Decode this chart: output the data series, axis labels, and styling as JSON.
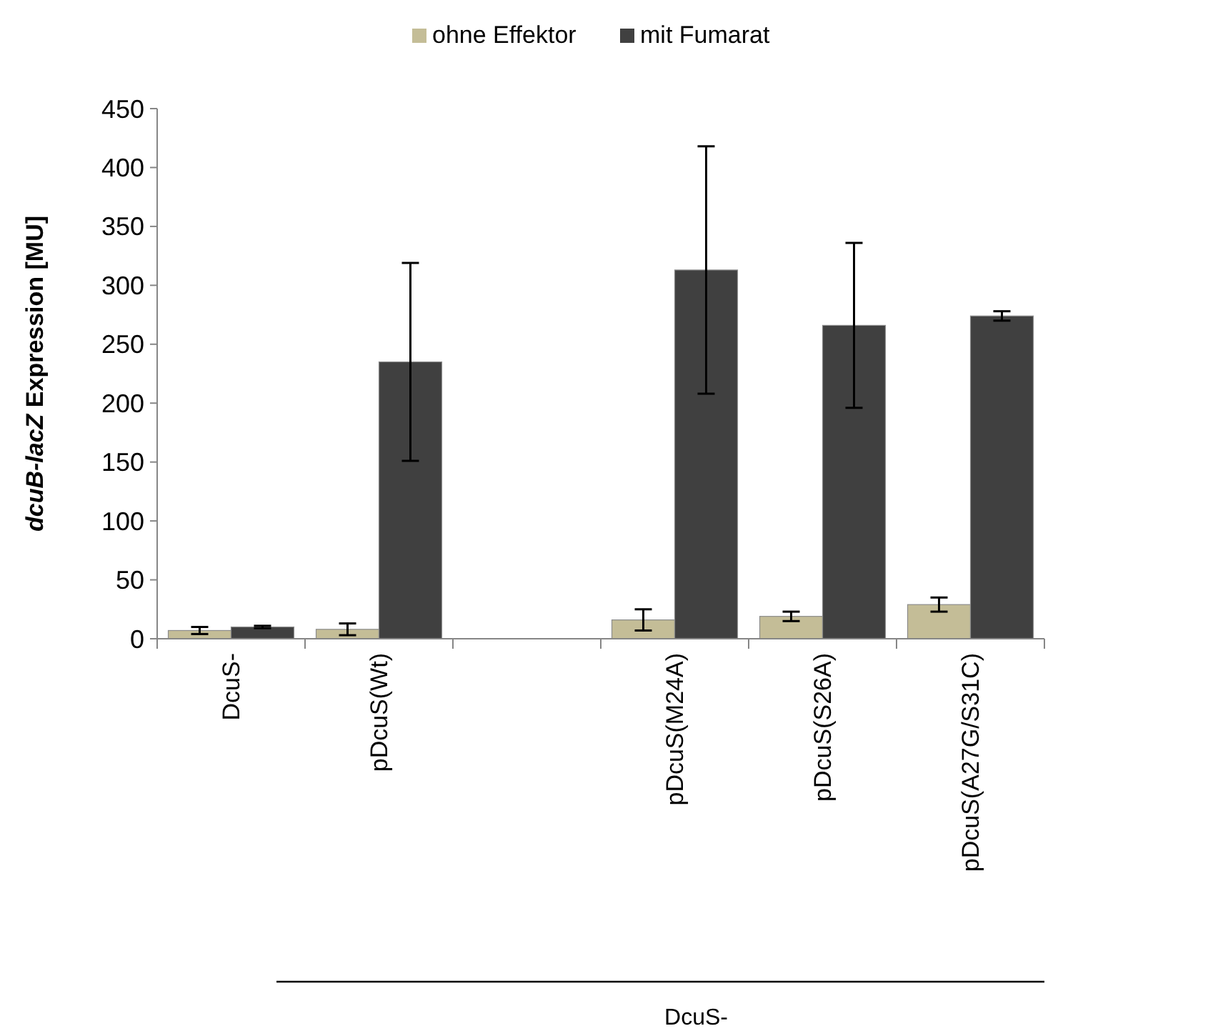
{
  "chart_data": {
    "type": "bar",
    "ylabel": "dcuB-lacZ Expression [MU]",
    "categories": [
      "DcuS-",
      "pDcuS(Wt)",
      null,
      "pDcuS(M24A)",
      "pDcuS(S26A)",
      "pDcuS(A27G/S31C)"
    ],
    "series": [
      {
        "name": "ohne Effektor",
        "color": "#c4bd97",
        "values": [
          7,
          8,
          null,
          16,
          19,
          29
        ],
        "errors": [
          3,
          5,
          null,
          9,
          4,
          6
        ]
      },
      {
        "name": "mit Fumarat",
        "color": "#404040",
        "values": [
          10,
          235,
          null,
          313,
          266,
          274
        ],
        "errors": [
          1,
          84,
          null,
          105,
          70,
          4
        ]
      }
    ],
    "ylim": [
      0,
      450
    ],
    "yticks": [
      0,
      50,
      100,
      150,
      200,
      250,
      300,
      350,
      400,
      450
    ],
    "legend": "top",
    "grid": false,
    "annotations": [
      "DcuS-"
    ]
  }
}
